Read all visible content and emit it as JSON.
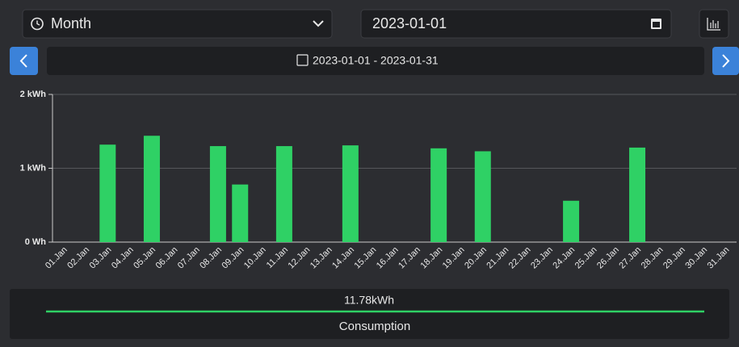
{
  "controls": {
    "period": "Month",
    "date": "2023-01-01",
    "range": "2023-01-01 - 2023-01-31"
  },
  "chart_data": {
    "type": "bar",
    "categories": [
      "01.Jan",
      "02.Jan",
      "03.Jan",
      "04.Jan",
      "05.Jan",
      "06.Jan",
      "07.Jan",
      "08.Jan",
      "09.Jan",
      "10.Jan",
      "11.Jan",
      "12.Jan",
      "13.Jan",
      "14.Jan",
      "15.Jan",
      "16.Jan",
      "17.Jan",
      "18.Jan",
      "19.Jan",
      "20.Jan",
      "21.Jan",
      "22.Jan",
      "23.Jan",
      "24.Jan",
      "25.Jan",
      "26.Jan",
      "27.Jan",
      "28.Jan",
      "29.Jan",
      "30.Jan",
      "31.Jan"
    ],
    "values": [
      0,
      0,
      1.32,
      0,
      1.44,
      0,
      0,
      1.3,
      0.78,
      0,
      1.3,
      0,
      0,
      1.31,
      0,
      0,
      0,
      1.27,
      0,
      1.23,
      0,
      0,
      0,
      0.56,
      0,
      0,
      1.28,
      0,
      0,
      0,
      0
    ],
    "color": "#2fd165",
    "ylim": [
      0,
      2
    ],
    "yticks": [
      {
        "value": 0,
        "label": "0 Wh"
      },
      {
        "value": 1,
        "label": "1 kWh"
      },
      {
        "value": 2,
        "label": "2 kWh"
      }
    ],
    "grid": true
  },
  "summary": {
    "total": "11.78kWh",
    "label": "Consumption"
  }
}
